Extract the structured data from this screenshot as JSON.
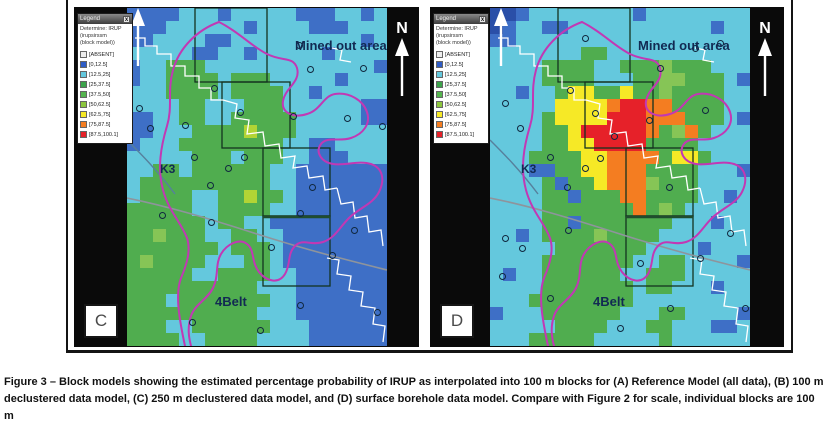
{
  "figure": {
    "caption": "Figure 3 – Block models showing the estimated percentage probability of IRUP as interpolated into 100 m blocks for (A) Reference Model (all data), (B) 100 m declustered data model, (C) 250 m declustered data model, and (D) surface borehole data model. Compare with Figure 2 for scale, individual blocks are 100 m"
  },
  "palette": {
    "B": "#2a4fa8",
    "b": "#3e6fc6",
    "c": "#64c8dd",
    "g": "#50ad4f",
    "l": "#86c556",
    "m": "#b2d435",
    "y": "#f6e926",
    "o": "#f47d21",
    "r": "#e62129"
  },
  "panels": [
    {
      "id": "C",
      "letter": "C",
      "north_label": "N",
      "labels": {
        "mined_out": "Mined out area",
        "k3": "K3",
        "belt": "4Belt"
      },
      "legend": {
        "title": "Legend",
        "close": "x",
        "subtitle_lines": [
          "Determine: IRUP",
          "(irupsirssm",
          "(block model))"
        ],
        "entries": [
          {
            "label": "[ABSENT]",
            "color": "#ededed"
          },
          {
            "label": "[0,12.5]",
            "color": "#2e5cc5"
          },
          {
            "label": "[12.5,25]",
            "color": "#64c8dd"
          },
          {
            "label": "[25,37.5]",
            "color": "#3da44c"
          },
          {
            "label": "[37.5,50]",
            "color": "#55b54f"
          },
          {
            "label": "[50,62.5]",
            "color": "#8cc63e"
          },
          {
            "label": "[62.5,75]",
            "color": "#f6e926"
          },
          {
            "label": "[75,87.5]",
            "color": "#f47d21"
          },
          {
            "label": "[87.5,100.1]",
            "color": "#e62129"
          }
        ]
      },
      "grid": [
        "bbbbcccbcccccbbbccbc",
        "bbbccccccbccccbbbccc",
        "bbccccbbccccccccccbc",
        "cccccbbccbcccccbcccc",
        "bccgggcccccccccccccb",
        "bccggggcgggcccccbccc",
        "cccggggcggggccbccccc",
        "ccccggcccgggccccccbb",
        "bbccggccgggggcccccbb",
        "bbcccggggmgggccccccc",
        "bcccggggggggccbbcccc",
        "cccccgggcgggccbbbccc",
        "ccggcggggggccbbbbbbb",
        "cggggggggggccbbbbbbb",
        "cggggccggmggcbbbbbbb",
        "gggggccggggccbbbbbbb",
        "ggggggcggccbbbbbbbbb",
        "gglgggccggccbbbbbbbb",
        "gggggggcgggcbbbbbbbb",
        "glggggcccggcbbbbbbbb",
        "gggggccggggccbbbbbbb",
        "ggggggggggcccbbbbbbb",
        "gggcgggggggccbbbbbbb",
        "ggggggggggcccbbbbbbb",
        "gggccggggggcccbbbbbb",
        "ggggccggggccccbbbbbb"
      ],
      "markers": [
        [
          12,
          100
        ],
        [
          23,
          120
        ],
        [
          35,
          207
        ],
        [
          58,
          117
        ],
        [
          67,
          149
        ],
        [
          83,
          177
        ],
        [
          84,
          214
        ],
        [
          87,
          80
        ],
        [
          101,
          160
        ],
        [
          113,
          104
        ],
        [
          117,
          149
        ],
        [
          133,
          322
        ],
        [
          144,
          239
        ],
        [
          166,
          108
        ],
        [
          173,
          205
        ],
        [
          185,
          179
        ],
        [
          65,
          314
        ],
        [
          173,
          297
        ],
        [
          205,
          247
        ],
        [
          227,
          222
        ],
        [
          250,
          304
        ],
        [
          172,
          37
        ],
        [
          183,
          61
        ],
        [
          236,
          60
        ],
        [
          220,
          110
        ],
        [
          255,
          118
        ]
      ]
    },
    {
      "id": "D",
      "letter": "D",
      "north_label": "N",
      "labels": {
        "mined_out": "Mined out area",
        "k3": "K3",
        "belt": "4Belt"
      },
      "legend": {
        "title": "Legend",
        "close": "x",
        "subtitle_lines": [
          "Determine: IRUP",
          "(irupsirssm",
          "(block model))"
        ],
        "entries": [
          {
            "label": "[ABSENT]",
            "color": "#ededed"
          },
          {
            "label": "[0,12.5]",
            "color": "#2e5cc5"
          },
          {
            "label": "[12.5,25]",
            "color": "#64c8dd"
          },
          {
            "label": "[25,37.5]",
            "color": "#3da44c"
          },
          {
            "label": "[37.5,50]",
            "color": "#55b54f"
          },
          {
            "label": "[50,62.5]",
            "color": "#8cc63e"
          },
          {
            "label": "[62.5,75]",
            "color": "#f6e926"
          },
          {
            "label": "[75,87.5]",
            "color": "#f47d21"
          },
          {
            "label": "[87.5,100.1]",
            "color": "#e62129"
          }
        ]
      },
      "grid": [
        "BBbccccccccbcccccccc",
        "Bbccbbcccccccccccbcc",
        "bbcccccccccccccccccc",
        "cccccccggccccccccccc",
        "ccccggggccggglgggccc",
        "ccccggggcccggllgggcb",
        "ccbccgyyggygglggggcc",
        "cccccyyyyorrooggggcc",
        "ccccgyyyyrrrooogggcb",
        "ccccggyrrrrroglogccc",
        "ccccggyyrrrrggggcccc",
        "cccggggyyoooogyygccc",
        "cccbbggyyoooggggcccb",
        "ccccgbggyooolgggcccc",
        "ccccggbgggooggggccbc",
        "ccccgggggggoglgccccc",
        "ccccggbgggggggcccbcc",
        "ccbcgggglggggccccccc",
        "cccccgggggggccccbccc",
        "ccccgggggggccggccccb",
        "cbccggggggccgggccccc",
        "ccccgggggggcggcccbcc",
        "cccggggggggccccccccc",
        "bcccggggggcccggccccb",
        "cccccggggcccggcccbbc",
        "cccgggggcccccgcccccc"
      ],
      "markers": [
        [
          170,
          60
        ],
        [
          80,
          82
        ],
        [
          105,
          105
        ],
        [
          159,
          112
        ],
        [
          124,
          128
        ],
        [
          60,
          149
        ],
        [
          110,
          150
        ],
        [
          95,
          160
        ],
        [
          77,
          179
        ],
        [
          179,
          179
        ],
        [
          215,
          102
        ],
        [
          15,
          95
        ],
        [
          30,
          120
        ],
        [
          60,
          290
        ],
        [
          130,
          320
        ],
        [
          180,
          300
        ],
        [
          210,
          250
        ],
        [
          240,
          225
        ],
        [
          255,
          300
        ],
        [
          15,
          230
        ],
        [
          95,
          30
        ],
        [
          230,
          35
        ],
        [
          150,
          255
        ],
        [
          78,
          222
        ],
        [
          32,
          240
        ],
        [
          12,
          268
        ],
        [
          205,
          40
        ]
      ]
    }
  ]
}
